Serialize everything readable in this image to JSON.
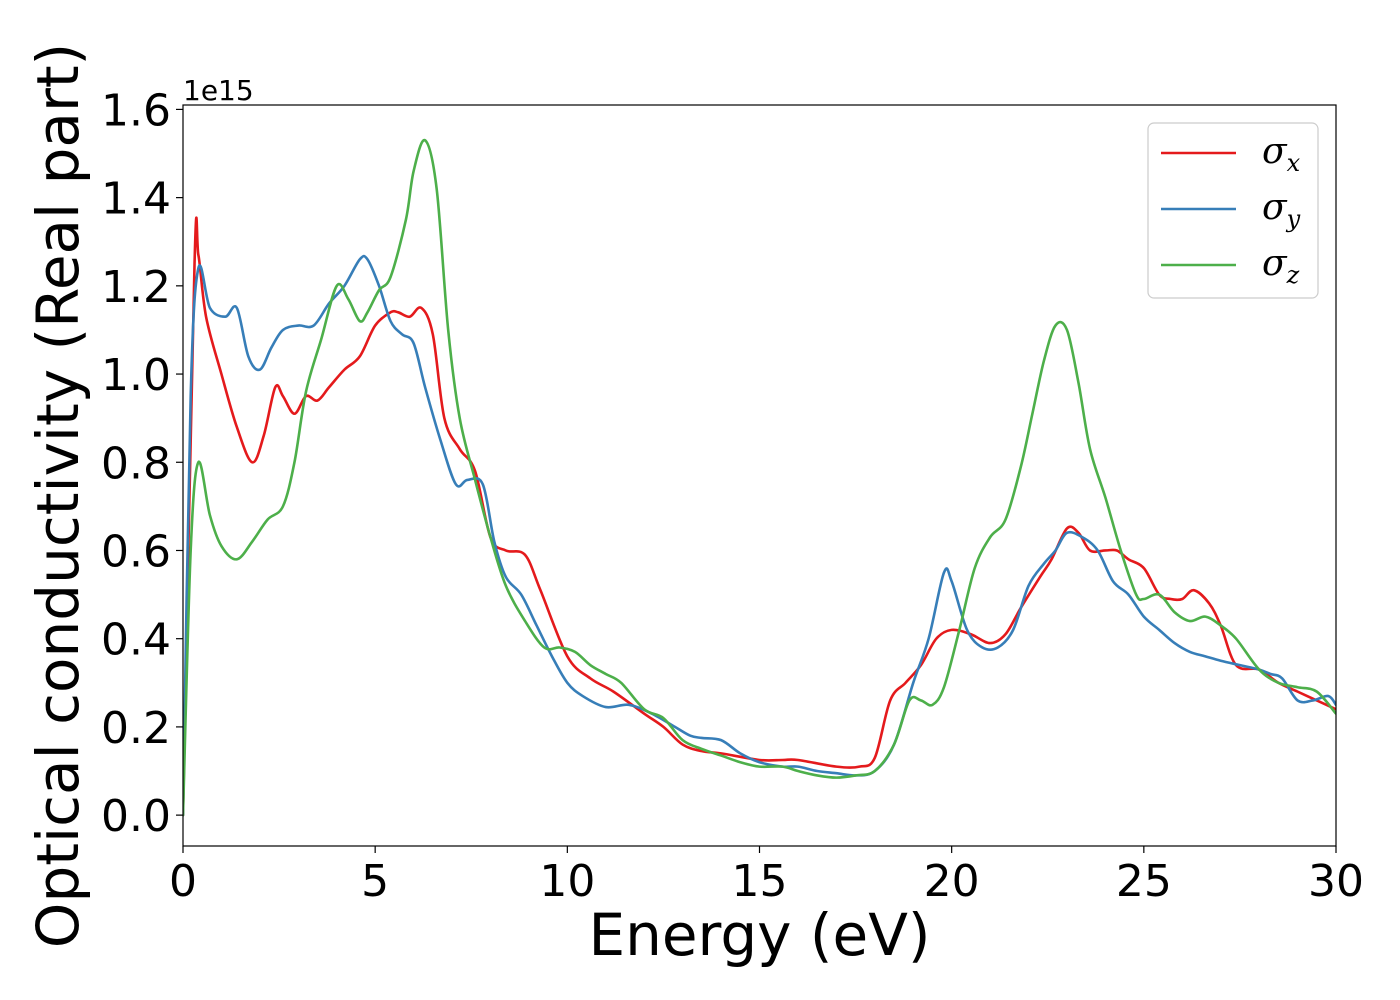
{
  "chart_data": {
    "type": "line",
    "xlabel": "Energy (eV)",
    "ylabel": "Optical conductivity (Real part)",
    "y_offset_label": "1e15",
    "xlim": [
      0,
      30
    ],
    "ylim": [
      -0.07,
      1.61
    ],
    "x_ticks": [
      0,
      5,
      10,
      15,
      20,
      25,
      30
    ],
    "x_tick_labels": [
      "0",
      "5",
      "10",
      "15",
      "20",
      "25",
      "30"
    ],
    "y_ticks": [
      0.0,
      0.2,
      0.4,
      0.6,
      0.8,
      1.0,
      1.2,
      1.4,
      1.6
    ],
    "y_tick_labels": [
      "0.0",
      "0.2",
      "0.4",
      "0.6",
      "0.8",
      "1.0",
      "1.2",
      "1.4",
      "1.6"
    ],
    "grid": false,
    "legend_position": "top-right",
    "series": [
      {
        "name": "σx",
        "label_base": "σ",
        "label_sub": "x",
        "color": "#e41a1c",
        "x": [
          0,
          0.3,
          0.4,
          0.6,
          1.0,
          1.4,
          1.8,
          2.1,
          2.4,
          2.6,
          2.9,
          3.2,
          3.5,
          3.8,
          4.2,
          4.6,
          5.0,
          5.4,
          5.6,
          5.9,
          6.2,
          6.5,
          6.8,
          7.2,
          7.6,
          8.0,
          8.4,
          8.9,
          9.3,
          10.0,
          10.6,
          11.2,
          12.0,
          12.5,
          13.0,
          13.5,
          14.0,
          15.0,
          15.6,
          16.0,
          17.0,
          17.6,
          18.0,
          18.4,
          18.8,
          19.2,
          19.6,
          20.0,
          20.5,
          21.0,
          21.4,
          21.8,
          22.3,
          22.6,
          23.0,
          23.3,
          23.6,
          24.0,
          24.3,
          24.6,
          25.0,
          25.4,
          25.7,
          26.0,
          26.3,
          26.7,
          27.0,
          27.4,
          28.0,
          28.5,
          29.0,
          29.5,
          30.0
        ],
        "values": [
          0.0,
          1.25,
          1.27,
          1.13,
          1.0,
          0.88,
          0.8,
          0.86,
          0.97,
          0.95,
          0.91,
          0.95,
          0.94,
          0.97,
          1.01,
          1.04,
          1.11,
          1.14,
          1.14,
          1.13,
          1.15,
          1.09,
          0.9,
          0.83,
          0.78,
          0.63,
          0.6,
          0.59,
          0.51,
          0.36,
          0.31,
          0.28,
          0.23,
          0.2,
          0.16,
          0.145,
          0.14,
          0.125,
          0.125,
          0.125,
          0.11,
          0.11,
          0.13,
          0.26,
          0.3,
          0.34,
          0.4,
          0.42,
          0.41,
          0.39,
          0.41,
          0.47,
          0.54,
          0.58,
          0.65,
          0.64,
          0.6,
          0.6,
          0.6,
          0.58,
          0.56,
          0.5,
          0.49,
          0.49,
          0.51,
          0.48,
          0.43,
          0.34,
          0.33,
          0.3,
          0.28,
          0.26,
          0.24
        ]
      },
      {
        "name": "σy",
        "label_base": "σ",
        "label_sub": "y",
        "color": "#377eb8",
        "x": [
          0,
          0.2,
          0.4,
          0.7,
          1.1,
          1.4,
          1.7,
          2.0,
          2.3,
          2.6,
          3.0,
          3.4,
          3.8,
          4.2,
          4.6,
          4.8,
          5.1,
          5.4,
          5.7,
          6.0,
          6.3,
          6.7,
          7.1,
          7.4,
          7.8,
          8.1,
          8.4,
          8.8,
          9.2,
          9.6,
          10.0,
          10.4,
          11.0,
          11.6,
          12.2,
          12.8,
          13.2,
          13.5,
          14.0,
          14.5,
          15.0,
          15.6,
          16.0,
          16.5,
          17.0,
          17.5,
          18.0,
          18.5,
          19.0,
          19.4,
          19.8,
          20.0,
          20.4,
          20.8,
          21.2,
          21.6,
          22.0,
          22.4,
          22.7,
          23.0,
          23.4,
          23.8,
          24.2,
          24.6,
          25.0,
          25.4,
          25.8,
          26.2,
          26.6,
          27.0,
          27.5,
          28.0,
          28.3,
          28.6,
          29.0,
          29.4,
          29.8,
          30.0
        ],
        "values": [
          0.0,
          0.95,
          1.24,
          1.15,
          1.13,
          1.15,
          1.04,
          1.01,
          1.06,
          1.1,
          1.11,
          1.11,
          1.16,
          1.2,
          1.26,
          1.26,
          1.2,
          1.12,
          1.09,
          1.07,
          0.97,
          0.85,
          0.75,
          0.76,
          0.75,
          0.62,
          0.54,
          0.5,
          0.43,
          0.36,
          0.3,
          0.27,
          0.245,
          0.25,
          0.23,
          0.2,
          0.18,
          0.175,
          0.17,
          0.14,
          0.12,
          0.11,
          0.11,
          0.1,
          0.095,
          0.09,
          0.1,
          0.16,
          0.3,
          0.4,
          0.55,
          0.53,
          0.42,
          0.38,
          0.38,
          0.42,
          0.52,
          0.57,
          0.6,
          0.64,
          0.63,
          0.6,
          0.53,
          0.5,
          0.45,
          0.42,
          0.39,
          0.37,
          0.36,
          0.35,
          0.34,
          0.33,
          0.32,
          0.31,
          0.26,
          0.26,
          0.27,
          0.25
        ]
      },
      {
        "name": "σz",
        "label_base": "σ",
        "label_sub": "z",
        "color": "#4daf4a",
        "x": [
          0,
          0.2,
          0.4,
          0.7,
          1.0,
          1.4,
          1.8,
          2.2,
          2.6,
          2.9,
          3.2,
          3.6,
          4.0,
          4.3,
          4.6,
          4.8,
          5.1,
          5.4,
          5.8,
          6.0,
          6.3,
          6.6,
          6.9,
          7.2,
          7.6,
          8.0,
          8.4,
          8.9,
          9.4,
          9.8,
          10.2,
          10.6,
          11.0,
          11.4,
          12.0,
          12.5,
          13.0,
          13.5,
          14.0,
          14.5,
          15.0,
          15.6,
          16.0,
          16.5,
          17.0,
          17.5,
          18.0,
          18.5,
          18.9,
          19.2,
          19.5,
          19.8,
          20.2,
          20.6,
          21.0,
          21.4,
          21.8,
          22.1,
          22.4,
          22.7,
          23.0,
          23.3,
          23.6,
          24.0,
          24.4,
          24.8,
          25.0,
          25.4,
          25.8,
          26.2,
          26.6,
          27.0,
          27.4,
          28.0,
          28.5,
          29.0,
          29.5,
          30.0
        ],
        "values": [
          0.0,
          0.6,
          0.8,
          0.68,
          0.61,
          0.58,
          0.62,
          0.67,
          0.7,
          0.8,
          0.96,
          1.08,
          1.2,
          1.17,
          1.12,
          1.14,
          1.19,
          1.22,
          1.35,
          1.46,
          1.53,
          1.42,
          1.1,
          0.9,
          0.76,
          0.63,
          0.52,
          0.44,
          0.38,
          0.38,
          0.37,
          0.34,
          0.32,
          0.3,
          0.24,
          0.22,
          0.17,
          0.15,
          0.135,
          0.12,
          0.11,
          0.11,
          0.1,
          0.09,
          0.085,
          0.09,
          0.1,
          0.16,
          0.26,
          0.26,
          0.25,
          0.29,
          0.42,
          0.56,
          0.63,
          0.67,
          0.79,
          0.91,
          1.03,
          1.11,
          1.1,
          0.98,
          0.83,
          0.72,
          0.6,
          0.5,
          0.49,
          0.5,
          0.46,
          0.44,
          0.45,
          0.43,
          0.4,
          0.33,
          0.3,
          0.29,
          0.28,
          0.23
        ]
      }
    ]
  }
}
